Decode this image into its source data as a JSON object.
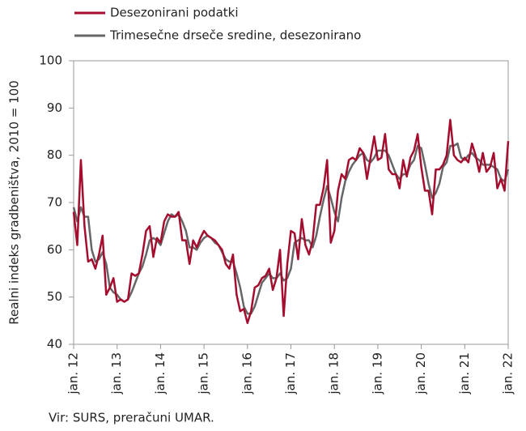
{
  "chart_data": {
    "type": "line",
    "y_axis_label": "Realni indeks gradbeništva, 2010 = 100",
    "source": "Vir: SURS, preračuni UMAR.",
    "categories": [
      "jan. 12",
      null,
      null,
      null,
      null,
      null,
      null,
      null,
      null,
      null,
      null,
      null,
      "jan. 13",
      null,
      null,
      null,
      null,
      null,
      null,
      null,
      null,
      null,
      null,
      null,
      "jan. 14",
      null,
      null,
      null,
      null,
      null,
      null,
      null,
      null,
      null,
      null,
      null,
      "jan. 15",
      null,
      null,
      null,
      null,
      null,
      null,
      null,
      null,
      null,
      null,
      null,
      "jan. 16",
      null,
      null,
      null,
      null,
      null,
      null,
      null,
      null,
      null,
      null,
      null,
      "jan. 17",
      null,
      null,
      null,
      null,
      null,
      null,
      null,
      null,
      null,
      null,
      null,
      "jan. 18",
      null,
      null,
      null,
      null,
      null,
      null,
      null,
      null,
      null,
      null,
      null,
      "jan. 19",
      null,
      null,
      null,
      null,
      null,
      null,
      null,
      null,
      null,
      null,
      null,
      "jan. 20",
      null,
      null,
      null,
      null,
      null,
      null,
      null,
      null,
      null,
      null,
      null,
      "jan. 21",
      null,
      null,
      null,
      null,
      null,
      null,
      null,
      null,
      null,
      null,
      null,
      "jan. 22"
    ],
    "series": [
      {
        "name": "Desezonirani podatki",
        "color": "#a50d2e",
        "values": [
          68,
          61,
          79,
          65,
          57.5,
          58,
          56,
          59,
          63,
          50.5,
          52,
          54,
          49,
          49.5,
          49,
          49.5,
          55,
          54.5,
          55,
          59,
          64,
          65,
          58.5,
          62.5,
          61.5,
          66,
          67.5,
          67,
          67,
          68,
          62,
          62,
          57,
          62,
          60.5,
          62.5,
          64,
          63,
          62.5,
          62,
          61,
          60,
          57,
          56,
          59,
          50.5,
          47,
          47.5,
          44.5,
          47,
          52,
          52.5,
          54,
          54.5,
          56,
          51.5,
          54,
          60,
          46,
          57,
          64,
          63.5,
          58,
          66.5,
          61,
          59,
          62,
          69.5,
          69.5,
          73,
          79,
          61.5,
          64,
          72.5,
          76,
          75,
          79,
          79.5,
          79,
          81.5,
          80.5,
          75,
          79.5,
          84,
          79,
          79.5,
          84.5,
          77,
          76,
          76,
          73,
          79,
          75.5,
          79.5,
          81,
          84.5,
          77.5,
          72.5,
          72.5,
          67.5,
          77,
          77,
          78,
          80,
          87.5,
          80,
          79,
          78.5,
          79.5,
          78.5,
          82.5,
          80,
          76.5,
          80.5,
          76.5,
          77.5,
          80.5,
          73,
          75,
          72.5,
          83
        ]
      },
      {
        "name": "Trimesečne drseče sredine, desezonirano",
        "color": "#666666",
        "values": [
          69,
          66,
          69,
          67,
          67,
          60,
          57.5,
          58,
          59.5,
          57,
          52,
          51,
          50.5,
          49.5,
          49,
          49.5,
          51,
          53,
          55,
          56.5,
          59,
          62,
          62.5,
          62,
          61,
          63.5,
          66,
          67.5,
          67,
          67.5,
          66,
          64,
          60.5,
          60.5,
          60,
          61.5,
          62.5,
          63,
          62.5,
          61.5,
          61,
          59.5,
          58,
          57.5,
          57.5,
          55,
          52,
          48,
          46.5,
          46.5,
          48,
          50.5,
          53,
          54,
          55,
          54,
          54,
          55,
          53.5,
          54,
          56,
          61.5,
          62,
          62.5,
          62,
          62,
          60.5,
          63,
          67,
          70.5,
          73.5,
          71,
          68,
          66,
          71,
          74.5,
          76.5,
          78,
          79,
          80,
          80.5,
          79,
          78.5,
          79.5,
          81,
          81,
          81,
          80,
          78,
          76,
          75,
          76,
          76,
          78,
          79,
          82,
          81.5,
          78,
          74,
          71,
          72,
          74,
          77.5,
          78.5,
          82,
          82,
          82.5,
          79.5,
          79,
          80,
          80.5,
          79.5,
          79,
          78,
          78,
          78,
          77.5,
          77,
          75,
          74.5,
          77
        ]
      }
    ],
    "ylim": [
      40,
      100
    ],
    "yticks": [
      40,
      50,
      60,
      70,
      80,
      90,
      100
    ]
  }
}
